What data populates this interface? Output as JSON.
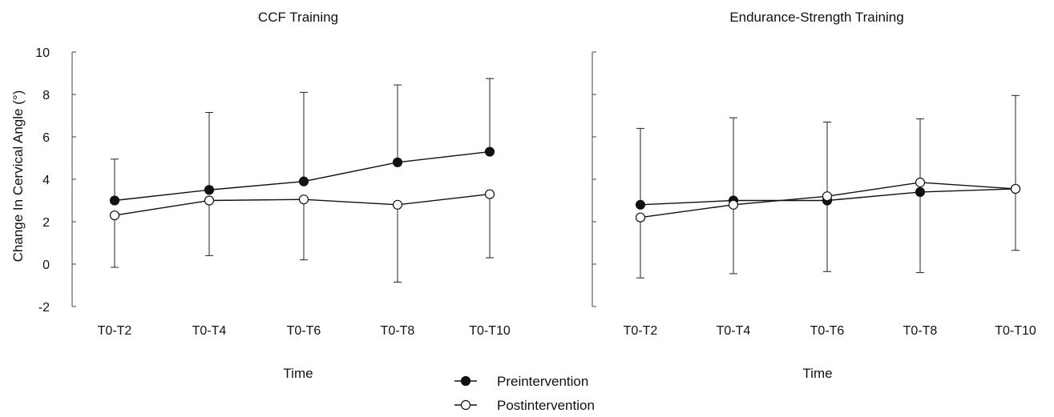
{
  "chart_data": [
    {
      "type": "line",
      "title": "CCF Training",
      "xlabel": "Time",
      "ylabel": "Change In Cervical Angle (°)",
      "categories": [
        "T0-T2",
        "T0-T4",
        "T0-T6",
        "T0-T8",
        "T0-T10"
      ],
      "ylim": [
        -2,
        10
      ],
      "yticks": [
        -2,
        0,
        2,
        4,
        6,
        8,
        10
      ],
      "series": [
        {
          "name": "Preintervention",
          "marker": "filled-circle",
          "values": [
            3.0,
            3.5,
            3.9,
            4.8,
            5.3
          ],
          "error_upper": [
            4.95,
            7.15,
            8.1,
            8.45,
            8.75
          ]
        },
        {
          "name": "Postintervention",
          "marker": "open-circle",
          "values": [
            2.3,
            3.0,
            3.05,
            2.8,
            3.3
          ],
          "error_lower": [
            -0.15,
            0.4,
            0.2,
            -0.85,
            0.3
          ]
        }
      ]
    },
    {
      "type": "line",
      "title": "Endurance-Strength Training",
      "xlabel": "Time",
      "ylabel": "",
      "categories": [
        "T0-T2",
        "T0-T4",
        "T0-T6",
        "T0-T8",
        "T0-T10"
      ],
      "ylim": [
        -2,
        10
      ],
      "series": [
        {
          "name": "Preintervention",
          "marker": "filled-circle",
          "values": [
            2.8,
            3.0,
            3.0,
            3.4,
            3.55
          ],
          "error_upper": [
            6.4,
            6.9,
            6.7,
            6.85,
            7.95
          ]
        },
        {
          "name": "Postintervention",
          "marker": "open-circle",
          "values": [
            2.2,
            2.8,
            3.2,
            3.85,
            3.55
          ],
          "error_lower": [
            -0.65,
            -0.45,
            -0.35,
            -0.4,
            0.65
          ]
        }
      ]
    }
  ],
  "legend": {
    "placement": "bottom-center",
    "items": [
      {
        "label": "Preintervention",
        "marker": "filled-circle"
      },
      {
        "label": "Postintervention",
        "marker": "open-circle"
      }
    ]
  },
  "colors": {
    "ink": "#111111",
    "axis": "#444444",
    "background": "#ffffff"
  }
}
